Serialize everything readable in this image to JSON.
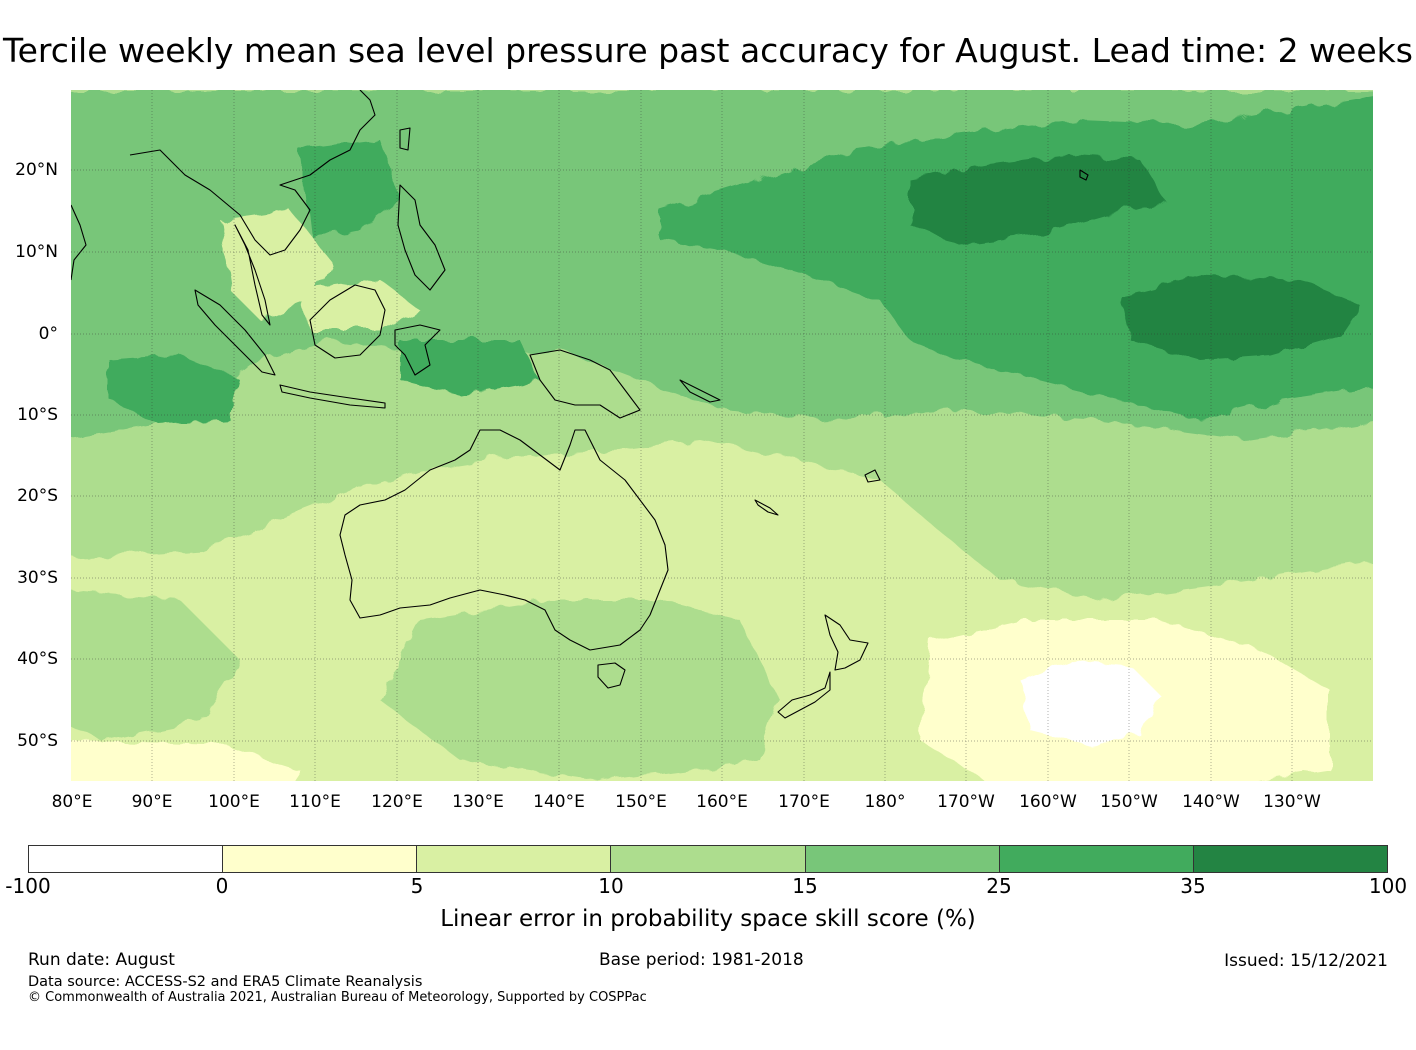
{
  "title": "Tercile weekly mean sea level pressure past accuracy for August. Lead time: 2 weeks",
  "map": {
    "lat_labels": [
      {
        "text": "20°N",
        "lat": 20
      },
      {
        "text": "10°N",
        "lat": 10
      },
      {
        "text": "0°",
        "lat": 0
      },
      {
        "text": "10°S",
        "lat": -10
      },
      {
        "text": "20°S",
        "lat": -20
      },
      {
        "text": "30°S",
        "lat": -30
      },
      {
        "text": "40°S",
        "lat": -40
      },
      {
        "text": "50°S",
        "lat": -50
      }
    ],
    "lon_labels": [
      {
        "text": "80°E",
        "lon": 80
      },
      {
        "text": "90°E",
        "lon": 90
      },
      {
        "text": "100°E",
        "lon": 100
      },
      {
        "text": "110°E",
        "lon": 110
      },
      {
        "text": "120°E",
        "lon": 120
      },
      {
        "text": "130°E",
        "lon": 130
      },
      {
        "text": "140°E",
        "lon": 140
      },
      {
        "text": "150°E",
        "lon": 150
      },
      {
        "text": "160°E",
        "lon": 160
      },
      {
        "text": "170°E",
        "lon": 170
      },
      {
        "text": "180°",
        "lon": 180
      },
      {
        "text": "170°W",
        "lon": 190
      },
      {
        "text": "160°W",
        "lon": 200
      },
      {
        "text": "150°W",
        "lon": 210
      },
      {
        "text": "140°W",
        "lon": 220
      },
      {
        "text": "130°W",
        "lon": 230
      }
    ],
    "extent": {
      "lon_min": 80,
      "lon_max": 240,
      "lat_min": -55,
      "lat_max": 30
    },
    "skill_regions": [
      {
        "level": 10,
        "color": "#addd8e",
        "area": "broad tropical/subtropical band"
      },
      {
        "level": 15,
        "color": "#78c679",
        "area": "northern tropics and central Pacific"
      },
      {
        "level": 25,
        "color": "#41ab5d",
        "area": "central and eastern tropical Pacific"
      },
      {
        "level": 35,
        "color": "#238443",
        "area": "north-central Pacific near 15°N and equatorial eastern Pacific"
      },
      {
        "level": 5,
        "color": "#d9f0a3",
        "area": "Australia, Tasman Sea, southern Indian Ocean, Maritime Continent"
      },
      {
        "level": 0,
        "color": "#ffffcc",
        "area": "southern ocean patches"
      },
      {
        "level": -100,
        "color": "#ffffff",
        "area": "south-east Pacific near 45°S 155°W"
      }
    ]
  },
  "colorbar": {
    "colors": [
      "#ffffff",
      "#ffffcc",
      "#d9f0a3",
      "#addd8e",
      "#78c679",
      "#41ab5d",
      "#238443"
    ],
    "ticks": [
      "-100",
      "0",
      "5",
      "10",
      "15",
      "25",
      "35",
      "100"
    ],
    "label": "Linear error in probability space skill score (%)"
  },
  "footer": {
    "run_date": "Run date: August",
    "base_period": "Base period: 1981-2018",
    "issued": "Issued: 15/12/2021",
    "data_source": "Data source: ACCESS-S2 and ERA5 Climate Reanalysis",
    "copyright": "© Commonwealth of Australia 2021, Australian Bureau of Meteorology, Supported by COSPPac"
  }
}
